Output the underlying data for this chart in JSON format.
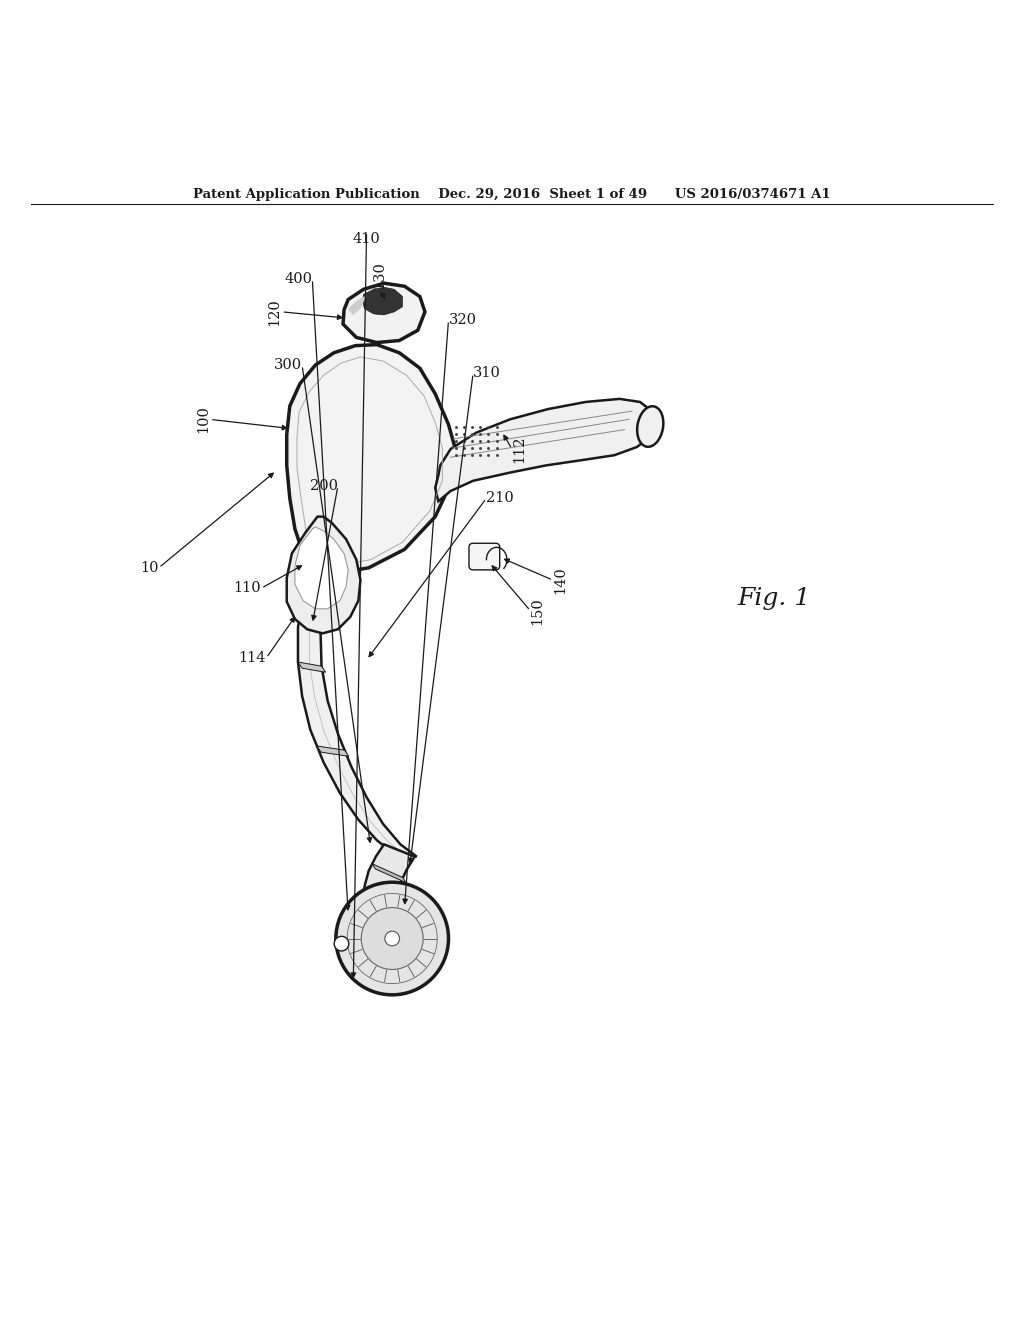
{
  "bg_color": "#ffffff",
  "line_color": "#1a1a1a",
  "header_text": "Patent Application Publication    Dec. 29, 2016  Sheet 1 of 49      US 2016/0374671 A1",
  "fig_label": "Fig. 1",
  "font_size_header": 9.5,
  "font_size_label": 10.5,
  "font_size_fig": 18
}
